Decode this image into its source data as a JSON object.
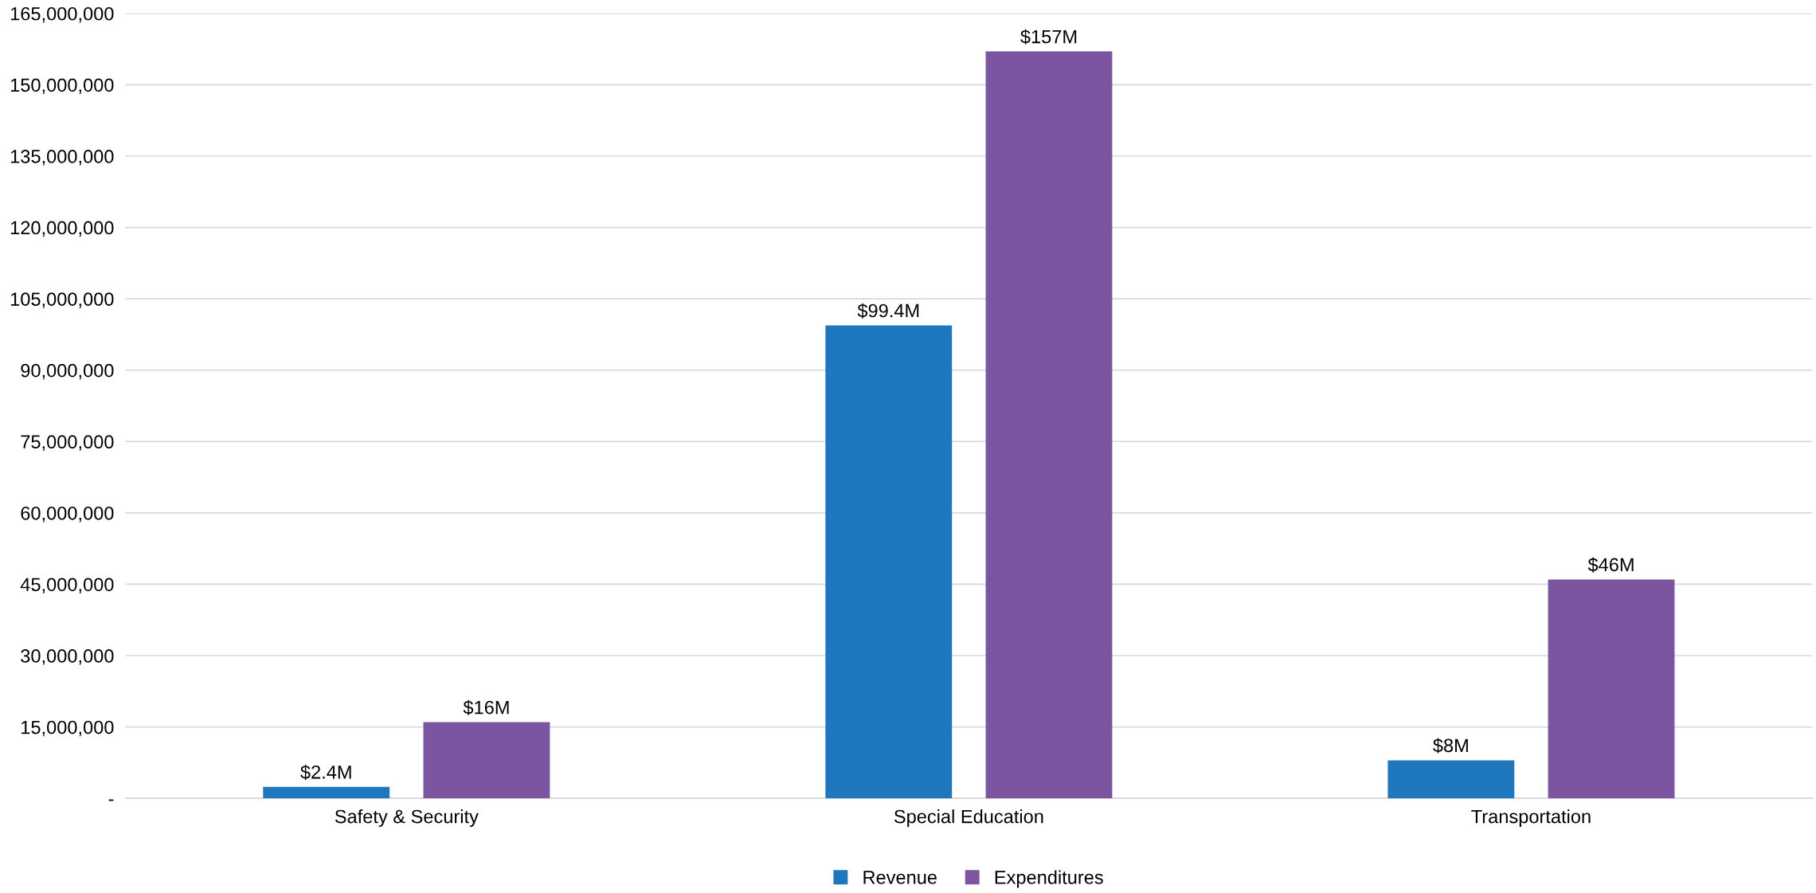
{
  "chart_data": {
    "type": "bar",
    "categories": [
      "Safety & Security",
      "Special Education",
      "Transportation"
    ],
    "series": [
      {
        "name": "Revenue",
        "color": "#1f77bd",
        "values": [
          2400000,
          99400000,
          8000000
        ],
        "value_labels": [
          "$2.4M",
          "$99.4M",
          "$8M"
        ]
      },
      {
        "name": "Expenditures",
        "color": "#7c55a0",
        "values": [
          16000000,
          157000000,
          46000000
        ],
        "value_labels": [
          "$16M",
          "$157M",
          "$46M"
        ]
      }
    ],
    "ylim": [
      0,
      165000000
    ],
    "yticks": [
      {
        "value": 0,
        "label": "-"
      },
      {
        "value": 15000000,
        "label": "15,000,000"
      },
      {
        "value": 30000000,
        "label": "30,000,000"
      },
      {
        "value": 45000000,
        "label": "45,000,000"
      },
      {
        "value": 60000000,
        "label": "60,000,000"
      },
      {
        "value": 75000000,
        "label": "75,000,000"
      },
      {
        "value": 90000000,
        "label": "90,000,000"
      },
      {
        "value": 105000000,
        "label": "105,000,000"
      },
      {
        "value": 120000000,
        "label": "120,000,000"
      },
      {
        "value": 135000000,
        "label": "135,000,000"
      },
      {
        "value": 150000000,
        "label": "150,000,000"
      },
      {
        "value": 165000000,
        "label": "165,000,000"
      }
    ],
    "grid": "y",
    "legend": "bottom"
  }
}
